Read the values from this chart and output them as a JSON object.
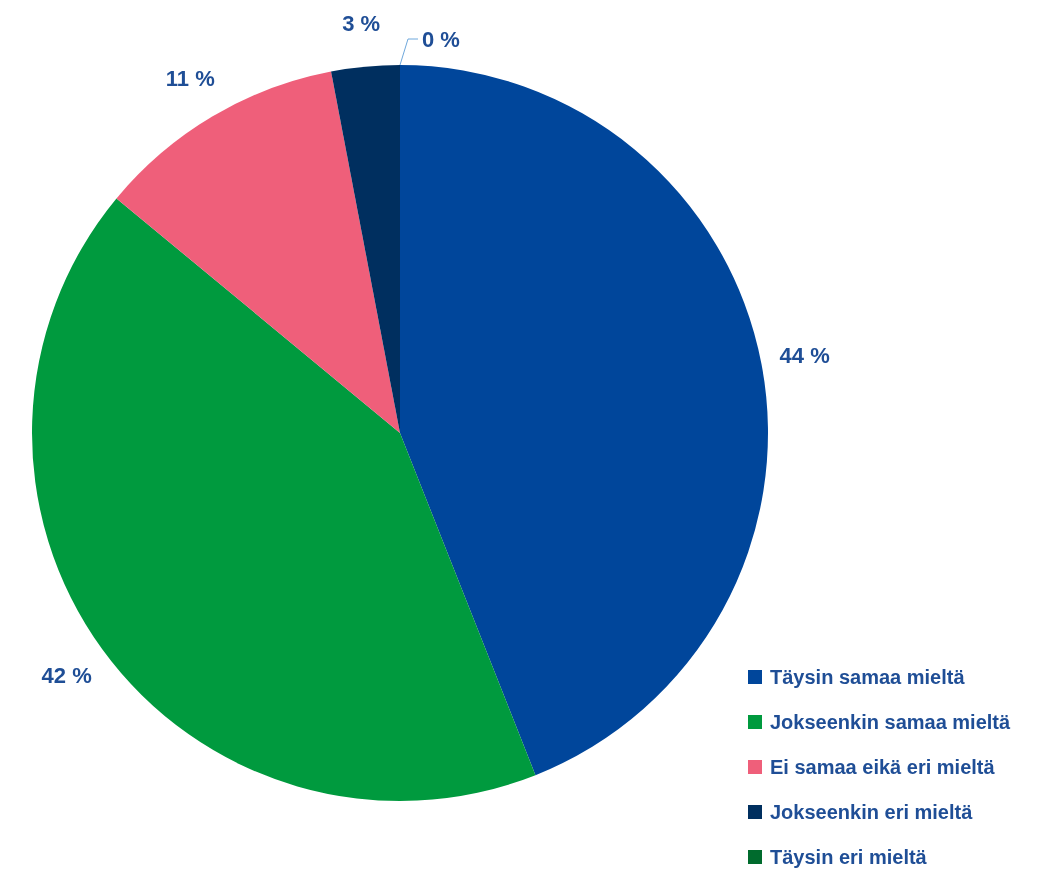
{
  "chart_data": {
    "type": "pie",
    "categories": [
      "Täysin samaa mieltä",
      "Jokseenkin samaa mieltä",
      "Ei samaa eikä eri mieltä",
      "Jokseenkin eri mieltä",
      "Täysin eri mieltä"
    ],
    "values": [
      44,
      42,
      11,
      3,
      0
    ],
    "colors": [
      "#00469b",
      "#009a3e",
      "#ef5f7a",
      "#002f5f",
      "#006b2d"
    ],
    "value_labels": [
      "44 %",
      "42 %",
      "11 %",
      "3 %",
      "0 %"
    ],
    "legend": "bottom right"
  }
}
